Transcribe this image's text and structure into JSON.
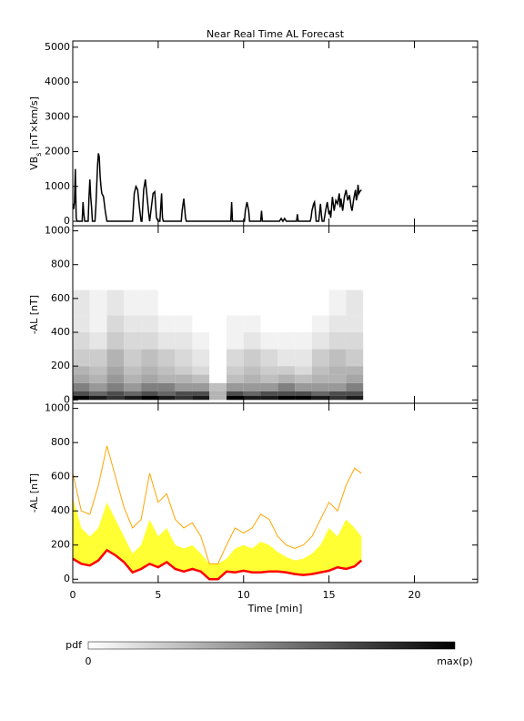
{
  "chart_data": [
    {
      "type": "line",
      "title": "Near Real Time AL Forecast",
      "ylabel": [
        "VB",
        "s",
        " [nT×km/s]"
      ],
      "xlim": [
        0,
        23.7
      ],
      "xticks": [
        0,
        5,
        10,
        15,
        20
      ],
      "show_xtick_labels": false,
      "ylim": [
        -130,
        5180
      ],
      "yticks": [
        0,
        1000,
        2000,
        3000,
        4000,
        5000
      ],
      "x": [
        0,
        0.05,
        0.1,
        0.15,
        0.2,
        0.25,
        0.55,
        0.6,
        0.65,
        0.7,
        0.9,
        0.95,
        1.0,
        1.05,
        1.1,
        1.15,
        1.3,
        1.35,
        1.45,
        1.5,
        1.55,
        1.6,
        1.65,
        1.7,
        1.8,
        1.9,
        2.0,
        3.5,
        3.6,
        3.7,
        3.8,
        3.9,
        4.0,
        4.05,
        4.15,
        4.25,
        4.35,
        4.45,
        4.5,
        4.6,
        4.7,
        4.8,
        4.9,
        5.0,
        5.1,
        5.2,
        5.25,
        5.3,
        6.35,
        6.4,
        6.5,
        6.6,
        6.65,
        9.25,
        9.3,
        9.35,
        10.05,
        10.1,
        10.2,
        10.3,
        10.35,
        11.0,
        11.05,
        11.1,
        12.1,
        12.2,
        12.3,
        12.4,
        12.5,
        13.1,
        13.15,
        13.2,
        13.9,
        13.95,
        14.0,
        14.1,
        14.15,
        14.2,
        14.25,
        14.4,
        14.5,
        14.55,
        14.6,
        14.7,
        14.8,
        14.9,
        15.0,
        15.05,
        15.1,
        15.15,
        15.2,
        15.25,
        15.3,
        15.4,
        15.5,
        15.6,
        15.65,
        15.7,
        15.8,
        15.9,
        16.0,
        16.1,
        16.2,
        16.3,
        16.35,
        16.45,
        16.55,
        16.6,
        16.65,
        16.7,
        16.75,
        16.8,
        16.9
      ],
      "series": [
        {
          "color": "#000000",
          "values": [
            500,
            350,
            550,
            1500,
            100,
            0,
            0,
            550,
            200,
            0,
            0,
            700,
            1200,
            700,
            400,
            0,
            0,
            400,
            1600,
            1950,
            1850,
            1300,
            1000,
            800,
            700,
            300,
            0,
            0,
            800,
            1000,
            900,
            400,
            0,
            0,
            900,
            1200,
            700,
            200,
            0,
            400,
            800,
            850,
            100,
            0,
            0,
            800,
            100,
            0,
            0,
            300,
            650,
            100,
            0,
            0,
            550,
            0,
            0,
            300,
            550,
            300,
            0,
            0,
            300,
            0,
            0,
            80,
            0,
            80,
            0,
            0,
            200,
            0,
            0,
            100,
            300,
            500,
            550,
            300,
            0,
            0,
            500,
            200,
            0,
            0,
            300,
            550,
            200,
            300,
            100,
            400,
            700,
            500,
            300,
            600,
            500,
            800,
            400,
            650,
            300,
            700,
            900,
            600,
            750,
            400,
            300,
            650,
            900,
            600,
            700,
            1050,
            800,
            850,
            900
          ]
        }
      ]
    },
    {
      "type": "heatmap",
      "ylabel": [
        "-AL [nT]"
      ],
      "xlim": [
        0,
        23.7
      ],
      "xticks": [
        0,
        5,
        10,
        15,
        20
      ],
      "show_xtick_labels": false,
      "ylim": [
        -20,
        1030
      ],
      "yticks": [
        0,
        200,
        400,
        600,
        800,
        1000
      ],
      "x_edges": [
        0,
        1,
        2,
        3,
        4,
        5,
        6,
        7,
        8,
        9,
        10,
        11,
        12,
        13,
        14,
        15,
        16,
        17
      ],
      "y_edges": [
        0,
        25,
        50,
        100,
        150,
        200,
        300,
        400,
        500,
        650
      ],
      "colors": [
        "#ffffff",
        "#000000"
      ],
      "z": [
        [
          1,
          0.9,
          0.8,
          0.9,
          1,
          0.9,
          0.8,
          0.9,
          0.3,
          1,
          0.9,
          0.9,
          1,
          1,
          0.9,
          0.8,
          0.9
        ],
        [
          0.7,
          0.6,
          0.7,
          0.6,
          0.7,
          0.6,
          0.7,
          0.7,
          0.3,
          0.7,
          0.6,
          0.7,
          0.7,
          0.7,
          0.6,
          0.7,
          0.7
        ],
        [
          0.5,
          0.4,
          0.5,
          0.4,
          0.5,
          0.5,
          0.4,
          0.4,
          0.25,
          0.4,
          0.4,
          0.4,
          0.5,
          0.4,
          0.4,
          0.4,
          0.5
        ],
        [
          0.35,
          0.3,
          0.4,
          0.3,
          0.35,
          0.3,
          0.3,
          0.25,
          0,
          0.25,
          0.3,
          0.25,
          0.3,
          0.25,
          0.3,
          0.3,
          0.35
        ],
        [
          0.3,
          0.25,
          0.35,
          0.25,
          0.3,
          0.25,
          0.2,
          0.15,
          0,
          0.2,
          0.25,
          0.2,
          0.2,
          0.15,
          0.25,
          0.3,
          0.3
        ],
        [
          0.2,
          0.2,
          0.3,
          0.2,
          0.25,
          0.2,
          0.15,
          0.1,
          0,
          0.15,
          0.2,
          0.15,
          0.1,
          0.1,
          0.2,
          0.25,
          0.2
        ],
        [
          0.15,
          0.1,
          0.2,
          0.15,
          0.15,
          0.1,
          0.1,
          0.05,
          0,
          0.05,
          0.1,
          0.05,
          0.05,
          0.05,
          0.1,
          0.15,
          0.15
        ],
        [
          0.1,
          0.05,
          0.15,
          0.1,
          0.1,
          0.05,
          0.05,
          0,
          0,
          0.05,
          0.05,
          0,
          0,
          0,
          0.05,
          0.1,
          0.1
        ],
        [
          0.1,
          0.05,
          0.1,
          0.05,
          0.05,
          0,
          0,
          0,
          0,
          0,
          0,
          0,
          0,
          0,
          0,
          0.05,
          0.1
        ]
      ]
    },
    {
      "type": "line",
      "ylabel": [
        "-AL [nT]"
      ],
      "xlabel": "Time [min]",
      "xlim": [
        0,
        23.7
      ],
      "xticks": [
        0,
        5,
        10,
        15,
        20
      ],
      "show_xtick_labels": true,
      "ylim": [
        -20,
        1030
      ],
      "yticks": [
        0,
        200,
        400,
        600,
        800,
        1000
      ],
      "x": [
        0,
        0.5,
        1,
        1.5,
        2,
        2.5,
        3,
        3.5,
        4,
        4.5,
        5,
        5.5,
        6,
        6.5,
        7,
        7.5,
        8,
        8.5,
        9,
        9.5,
        10,
        10.5,
        11,
        11.5,
        12,
        12.5,
        13,
        13.5,
        14,
        14.5,
        15,
        15.5,
        16,
        16.5,
        16.9
      ],
      "band": {
        "color": "#ffff33",
        "values": [
          480,
          300,
          250,
          300,
          450,
          350,
          250,
          150,
          200,
          350,
          250,
          300,
          200,
          180,
          200,
          150,
          90,
          90,
          120,
          180,
          200,
          180,
          220,
          200,
          160,
          130,
          110,
          120,
          150,
          200,
          300,
          250,
          350,
          300,
          250
        ]
      },
      "series": [
        {
          "color": "#ffa500",
          "values": [
            620,
            400,
            380,
            550,
            780,
            600,
            420,
            300,
            350,
            620,
            450,
            500,
            350,
            300,
            330,
            250,
            90,
            90,
            200,
            300,
            270,
            300,
            380,
            350,
            250,
            200,
            180,
            200,
            250,
            350,
            450,
            400,
            550,
            650,
            620
          ]
        },
        {
          "color": "#ff0000",
          "values": [
            120,
            90,
            80,
            110,
            170,
            140,
            100,
            40,
            60,
            90,
            70,
            100,
            60,
            45,
            60,
            45,
            0,
            0,
            45,
            40,
            50,
            40,
            40,
            45,
            45,
            40,
            30,
            25,
            30,
            40,
            50,
            70,
            60,
            75,
            110
          ]
        }
      ]
    }
  ],
  "colorbar": {
    "label": "pdf",
    "min_label": "0",
    "max_label": "max(p)",
    "colors": [
      "#ffffff",
      "#000000"
    ]
  }
}
